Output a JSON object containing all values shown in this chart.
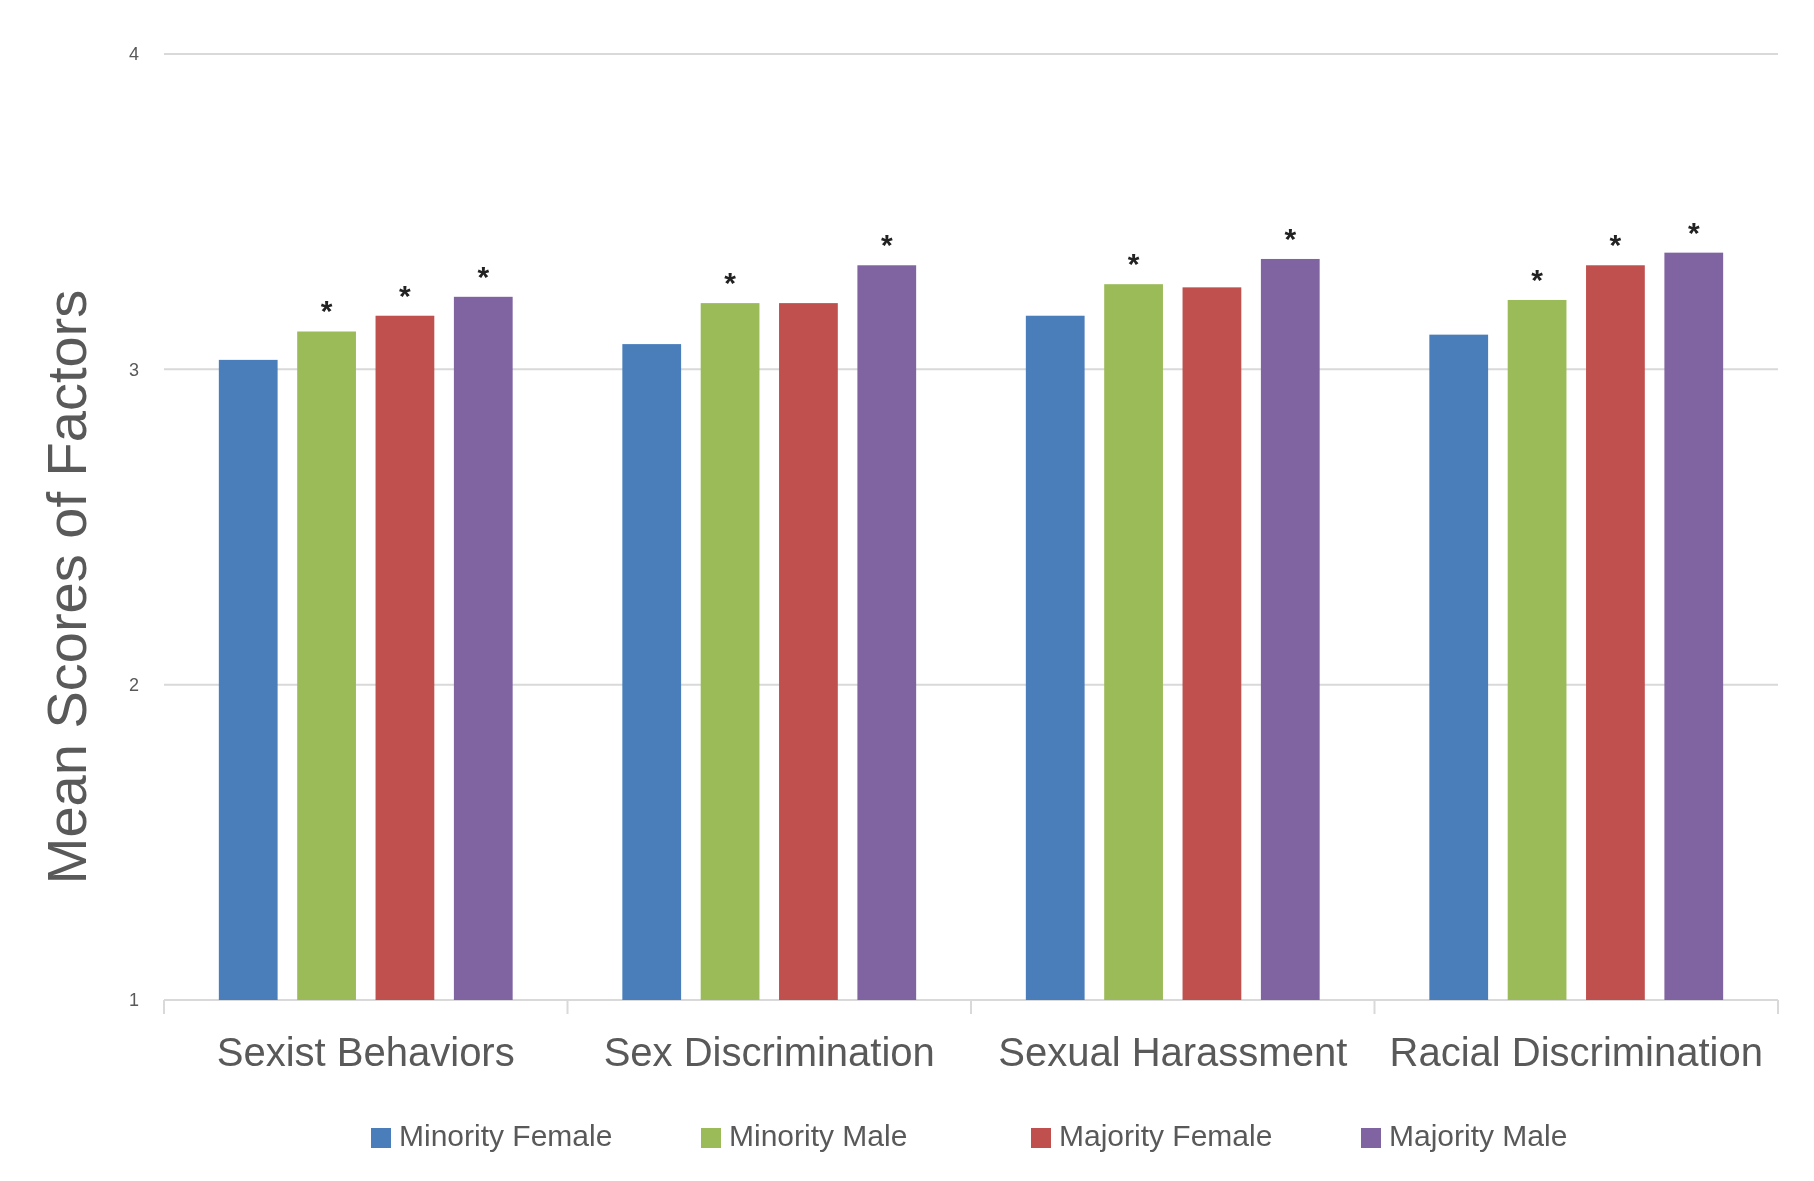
{
  "chart_data": {
    "type": "bar",
    "ylabel": "Mean Scores of Factors",
    "categories": [
      "Sexist Behaviors",
      "Sex Discrimination",
      "Sexual Harassment",
      "Racial Discrimination"
    ],
    "series": [
      {
        "name": "Minority Female",
        "color": "#4a7ebb",
        "values": [
          3.03,
          3.08,
          3.17,
          3.11
        ],
        "value_labels": [
          null,
          null,
          null,
          null
        ]
      },
      {
        "name": "Minority Male",
        "color": "#9bbb59",
        "values": [
          3.12,
          3.21,
          3.27,
          3.22
        ],
        "value_labels": [
          "*",
          "*",
          "*",
          "*"
        ]
      },
      {
        "name": "Majority Female",
        "color": "#c0504d",
        "values": [
          3.17,
          3.21,
          3.26,
          3.33
        ],
        "value_labels": [
          "*",
          null,
          null,
          "*"
        ]
      },
      {
        "name": "Majority Male",
        "color": "#8064a2",
        "values": [
          3.23,
          3.33,
          3.35,
          3.37
        ],
        "value_labels": [
          "*",
          "*",
          "*",
          "*"
        ]
      }
    ],
    "ylim": [
      1,
      4
    ],
    "yticks": [
      1,
      2,
      3,
      4
    ],
    "grid": "y",
    "legend": "bottom"
  }
}
